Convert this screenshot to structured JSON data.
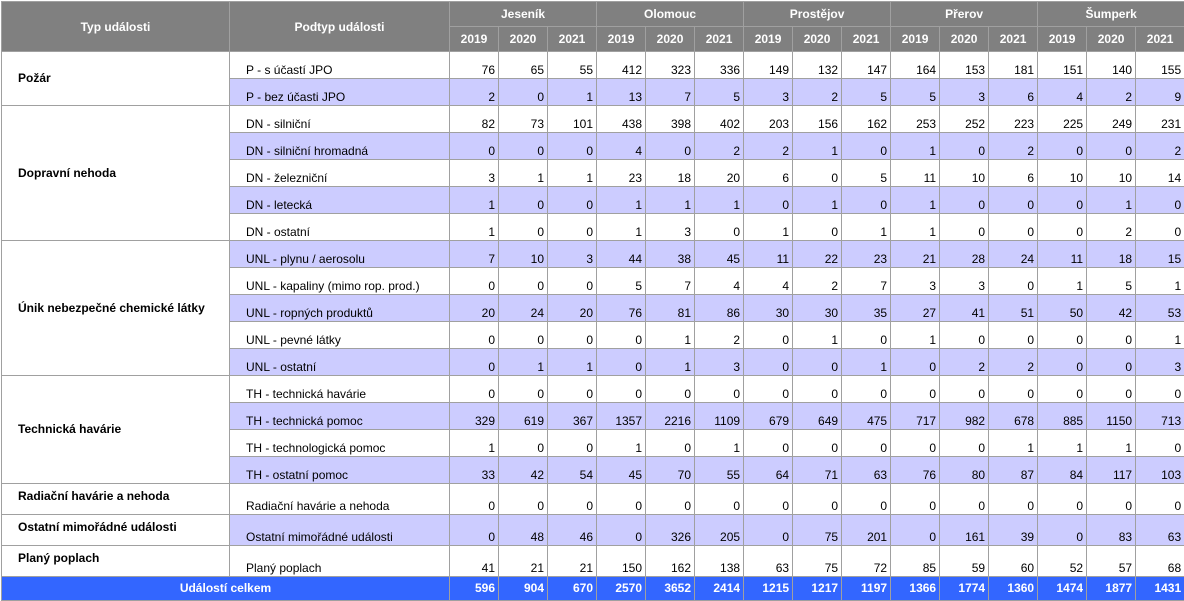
{
  "header": {
    "type_label": "Typ události",
    "subtype_label": "Podtyp události",
    "districts": [
      "Jeseník",
      "Olomouc",
      "Prostějov",
      "Přerov",
      "Šumperk"
    ],
    "years": [
      "2019",
      "2020",
      "2021"
    ]
  },
  "colors": {
    "header_bg": "#808080",
    "alt_row_bg": "#ccccff",
    "total_bg": "#3366ff"
  },
  "groups": [
    {
      "type": "Požár",
      "rows": [
        {
          "subtype": "P - s účastí JPO",
          "values": [
            76,
            65,
            55,
            412,
            323,
            336,
            149,
            132,
            147,
            164,
            153,
            181,
            151,
            140,
            155
          ]
        },
        {
          "subtype": "P - bez účasti JPO",
          "values": [
            2,
            0,
            1,
            13,
            7,
            5,
            3,
            2,
            5,
            5,
            3,
            6,
            4,
            2,
            9
          ]
        }
      ]
    },
    {
      "type": "Dopravní nehoda",
      "rows": [
        {
          "subtype": "DN - silniční",
          "values": [
            82,
            73,
            101,
            438,
            398,
            402,
            203,
            156,
            162,
            253,
            252,
            223,
            225,
            249,
            231
          ]
        },
        {
          "subtype": "DN - silniční hromadná",
          "values": [
            0,
            0,
            0,
            4,
            0,
            2,
            2,
            1,
            0,
            1,
            0,
            2,
            0,
            0,
            2
          ]
        },
        {
          "subtype": "DN - železniční",
          "values": [
            3,
            1,
            1,
            23,
            18,
            20,
            6,
            0,
            5,
            11,
            10,
            6,
            10,
            10,
            14
          ]
        },
        {
          "subtype": "DN - letecká",
          "values": [
            1,
            0,
            0,
            1,
            1,
            1,
            0,
            1,
            0,
            1,
            0,
            0,
            0,
            1,
            0
          ]
        },
        {
          "subtype": "DN - ostatní",
          "values": [
            1,
            0,
            0,
            1,
            3,
            0,
            1,
            0,
            1,
            1,
            0,
            0,
            0,
            2,
            0
          ]
        }
      ]
    },
    {
      "type": "Únik nebezpečné chemické látky",
      "rows": [
        {
          "subtype": "UNL - plynu / aerosolu",
          "values": [
            7,
            10,
            3,
            44,
            38,
            45,
            11,
            22,
            23,
            21,
            28,
            24,
            11,
            18,
            15
          ]
        },
        {
          "subtype": "UNL - kapaliny (mimo rop. prod.)",
          "values": [
            0,
            0,
            0,
            5,
            7,
            4,
            4,
            2,
            7,
            3,
            3,
            0,
            1,
            5,
            1
          ]
        },
        {
          "subtype": "UNL - ropných produktů",
          "values": [
            20,
            24,
            20,
            76,
            81,
            86,
            30,
            30,
            35,
            27,
            41,
            51,
            50,
            42,
            53
          ]
        },
        {
          "subtype": "UNL - pevné látky",
          "values": [
            0,
            0,
            0,
            0,
            1,
            2,
            0,
            1,
            0,
            1,
            0,
            0,
            0,
            0,
            1
          ]
        },
        {
          "subtype": "UNL - ostatní",
          "values": [
            0,
            1,
            1,
            0,
            1,
            3,
            0,
            0,
            1,
            0,
            2,
            2,
            0,
            0,
            3
          ]
        }
      ]
    },
    {
      "type": "Technická havárie",
      "rows": [
        {
          "subtype": "TH - technická havárie",
          "values": [
            0,
            0,
            0,
            0,
            0,
            0,
            0,
            0,
            0,
            0,
            0,
            0,
            0,
            0,
            0
          ]
        },
        {
          "subtype": "TH - technická pomoc",
          "values": [
            329,
            619,
            367,
            1357,
            2216,
            1109,
            679,
            649,
            475,
            717,
            982,
            678,
            885,
            1150,
            713
          ]
        },
        {
          "subtype": "TH - technologická pomoc",
          "values": [
            1,
            0,
            0,
            1,
            0,
            1,
            0,
            0,
            0,
            0,
            0,
            1,
            1,
            1,
            0
          ]
        },
        {
          "subtype": "TH - ostatní pomoc",
          "values": [
            33,
            42,
            54,
            45,
            70,
            55,
            64,
            71,
            63,
            76,
            80,
            87,
            84,
            117,
            103
          ]
        }
      ]
    },
    {
      "type": "Radiační havárie a nehoda",
      "rows": [
        {
          "subtype": "Radiační havárie a nehoda",
          "values": [
            0,
            0,
            0,
            0,
            0,
            0,
            0,
            0,
            0,
            0,
            0,
            0,
            0,
            0,
            0
          ]
        }
      ]
    },
    {
      "type": "Ostatní mimořádné události",
      "rows": [
        {
          "subtype": "Ostatní mimořádné události",
          "values": [
            0,
            48,
            46,
            0,
            326,
            205,
            0,
            75,
            201,
            0,
            161,
            39,
            0,
            83,
            63
          ]
        }
      ]
    },
    {
      "type": "Planý poplach",
      "rows": [
        {
          "subtype": "Planý poplach",
          "values": [
            41,
            21,
            21,
            150,
            162,
            138,
            63,
            75,
            72,
            85,
            59,
            60,
            52,
            57,
            68
          ]
        }
      ]
    }
  ],
  "total": {
    "label": "Událostí celkem",
    "values": [
      596,
      904,
      670,
      2570,
      3652,
      2414,
      1215,
      1217,
      1197,
      1366,
      1774,
      1360,
      1474,
      1877,
      1431
    ]
  }
}
